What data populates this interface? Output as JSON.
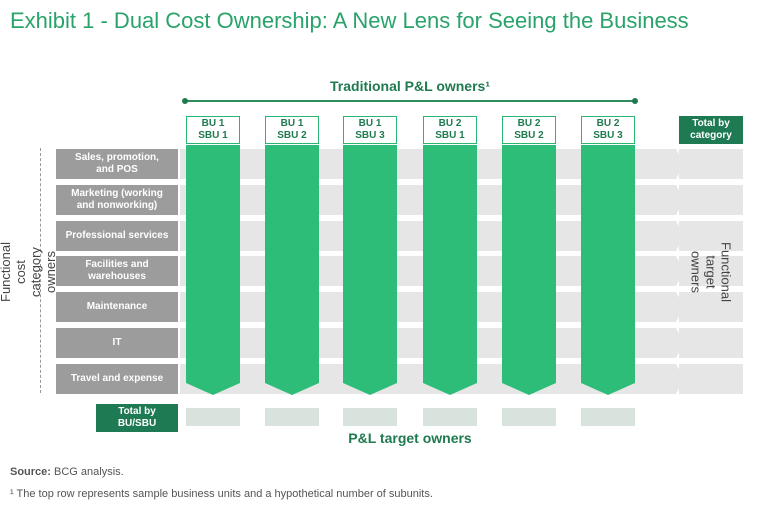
{
  "title": "Exhibit 1 - Dual Cost Ownership: A New Lens for Seeing the Business",
  "top_label": "Traditional P&L owners¹",
  "columns": [
    {
      "label": "BU 1\nSBU 1"
    },
    {
      "label": "BU 1\nSBU 2"
    },
    {
      "label": "BU 1\nSBU 3"
    },
    {
      "label": "BU 2\nSBU 1"
    },
    {
      "label": "BU 2\nSBU 2"
    },
    {
      "label": "BU 2\nSBU 3"
    }
  ],
  "total_by_category": "Total by\ncategory",
  "categories": [
    "Sales, promotion,\nand POS",
    "Marketing (working\nand nonworking)",
    "Professional services",
    "Facilities and\nwarehouses",
    "Maintenance",
    "IT",
    "Travel and expense"
  ],
  "left_axis_label": "Functional cost category\nowners",
  "right_axis_label": "Functional target\nowners",
  "total_by_bu": "Total by\nBU/SBU",
  "bottom_label": "P&L target owners",
  "source_label": "Source:",
  "source_text": " BCG analysis.",
  "footnote": "¹ The top row represents sample business units and a hypothetical number of subunits.",
  "colors": {
    "accent_green": "#2ebd78",
    "dark_green": "#1e7a52",
    "category_gray": "#9c9c9c",
    "band_gray": "#e6e6e6"
  }
}
